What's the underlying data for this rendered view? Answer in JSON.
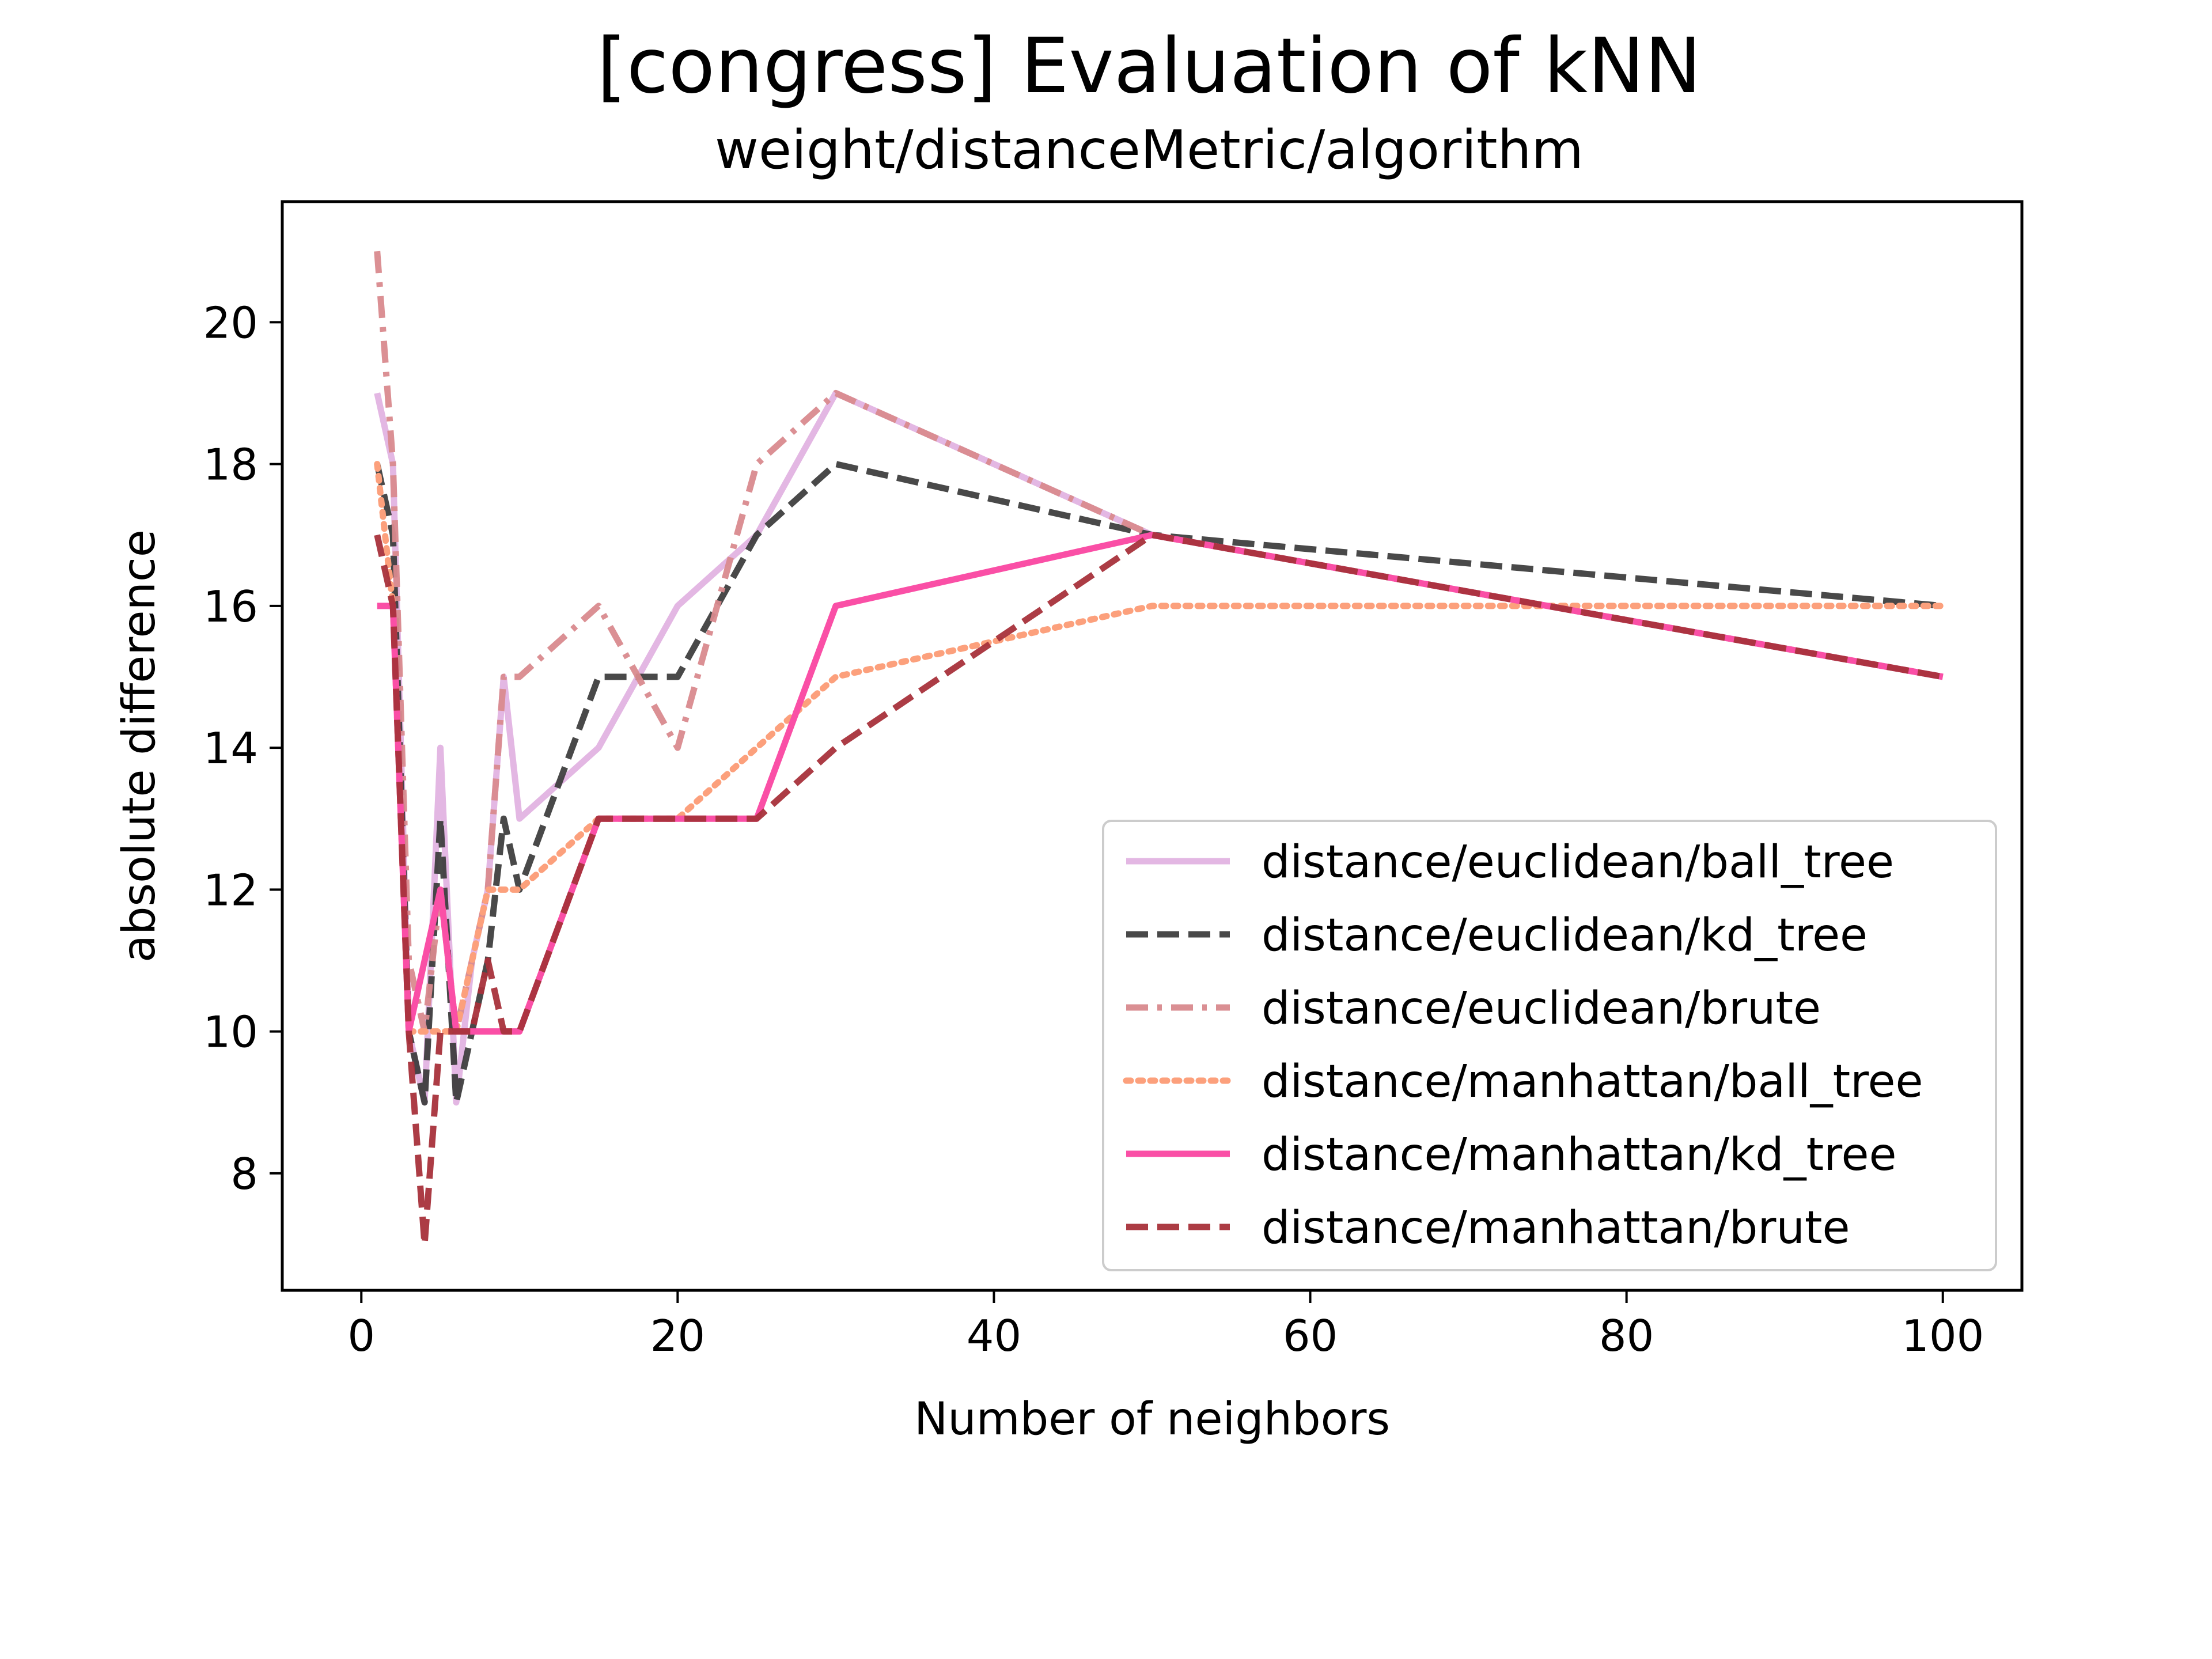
{
  "chart_data": {
    "type": "line",
    "title": "[congress] Evaluation of kNN",
    "subtitle": "weight/distanceMetric/algorithm",
    "xlabel": "Number of neighbors",
    "ylabel": "absolute difference",
    "xlim": [
      -5,
      105
    ],
    "ylim": [
      6.35,
      21.7
    ],
    "xticks": [
      0,
      20,
      40,
      60,
      80,
      100
    ],
    "yticks": [
      8,
      10,
      12,
      14,
      16,
      18,
      20
    ],
    "grid": false,
    "legend_position": "lower-right",
    "x": [
      1,
      2,
      3,
      4,
      5,
      6,
      7,
      8,
      9,
      10,
      15,
      20,
      25,
      30,
      50,
      100
    ],
    "series": [
      {
        "name": "distance/euclidean/ball_tree",
        "color": "#e3b7e3",
        "dash": "solid",
        "opacity": 1.0,
        "values": [
          19,
          18,
          10,
          9,
          14,
          9,
          11,
          12,
          15,
          13,
          14,
          16,
          17,
          19,
          17,
          15
        ]
      },
      {
        "name": "distance/euclidean/kd_tree",
        "color": "#3a3a3a",
        "dash": "dashed",
        "opacity": 0.92,
        "values": [
          18,
          17,
          10,
          9,
          13,
          9,
          10,
          11,
          13,
          12,
          15,
          15,
          17,
          18,
          17,
          16
        ]
      },
      {
        "name": "distance/euclidean/brute",
        "color": "#d98a8e",
        "dash": "dashdot",
        "opacity": 0.95,
        "values": [
          21,
          18,
          11,
          10,
          12,
          10,
          11,
          12,
          15,
          15,
          16,
          14,
          18,
          19,
          17,
          15
        ]
      },
      {
        "name": "distance/manhattan/ball_tree",
        "color": "#fca07c",
        "dash": "dotted",
        "opacity": 1.0,
        "values": [
          18,
          16,
          10,
          10,
          10,
          10,
          11,
          12,
          12,
          12,
          13,
          13,
          14,
          15,
          16,
          16
        ]
      },
      {
        "name": "distance/manhattan/kd_tree",
        "color": "#fa4fa6",
        "dash": "solid",
        "opacity": 1.0,
        "values": [
          16,
          16,
          10,
          11,
          12,
          10,
          10,
          10,
          10,
          10,
          13,
          13,
          13,
          16,
          17,
          15
        ]
      },
      {
        "name": "distance/manhattan/brute",
        "color": "#a8323b",
        "dash": "dashed",
        "opacity": 0.95,
        "values": [
          17,
          16,
          10,
          7,
          10,
          10,
          10,
          11,
          10,
          10,
          13,
          13,
          13,
          14,
          17,
          15
        ]
      }
    ]
  }
}
